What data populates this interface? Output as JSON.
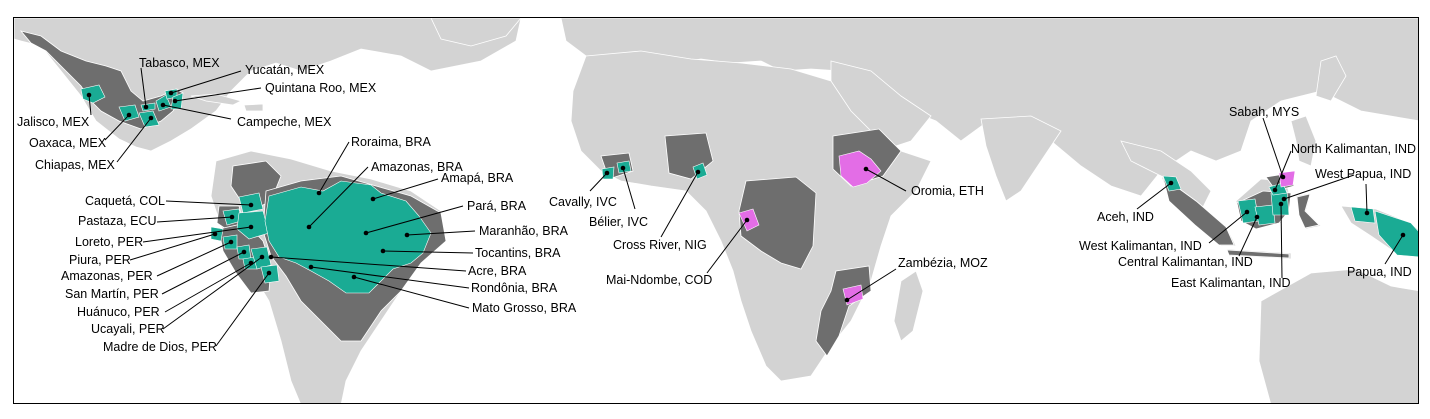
{
  "colors": {
    "ocean": "#ffffff",
    "land": "#d3d3d3",
    "country_highlight": "#6e6e6e",
    "jurisdiction_teal": "#1aab94",
    "jurisdiction_pink": "#e36de6",
    "border": "#ffffff"
  },
  "labels": {
    "tabasco": "Tabasco, MEX",
    "yucatan": "Yucatán, MEX",
    "quintana_roo": "Quintana Roo, MEX",
    "campeche": "Campeche, MEX",
    "jalisco": "Jalisco, MEX",
    "oaxaca": "Oaxaca, MEX",
    "chiapas": "Chiapas, MEX",
    "roraima": "Roraima, BRA",
    "amazonas_bra": "Amazonas, BRA",
    "amapa": "Amapá, BRA",
    "para": "Pará, BRA",
    "maranhao": "Maranhão, BRA",
    "tocantins": "Tocantins, BRA",
    "acre": "Acre, BRA",
    "rondonia": "Rondônia, BRA",
    "mato_grosso": "Mato Grosso, BRA",
    "caqueta": "Caquetá, COL",
    "pastaza": "Pastaza, ECU",
    "loreto": "Loreto, PER",
    "piura": "Piura, PER",
    "amazonas_per": "Amazonas, PER",
    "san_martin": "San Martín, PER",
    "huanuco": "Huánuco, PER",
    "ucayali": "Ucayali, PER",
    "madre_de_dios": "Madre de Dios, PER",
    "cavally": "Cavally, IVC",
    "belier": "Bélier, IVC",
    "cross_river": "Cross River, NIG",
    "mai_ndombe": "Mai-Ndombe, COD",
    "oromia": "Oromia, ETH",
    "zambezia": "Zambézia, MOZ",
    "sabah": "Sabah, MYS",
    "north_kalimantan": "North Kalimantan, IND",
    "west_papua": "West Papua, IND",
    "aceh": "Aceh, IND",
    "west_kalimantan": "West Kalimantan, IND",
    "central_kalimantan": "Central Kalimantan, IND",
    "east_kalimantan": "East Kalimantan, IND",
    "papua": "Papua, IND"
  }
}
